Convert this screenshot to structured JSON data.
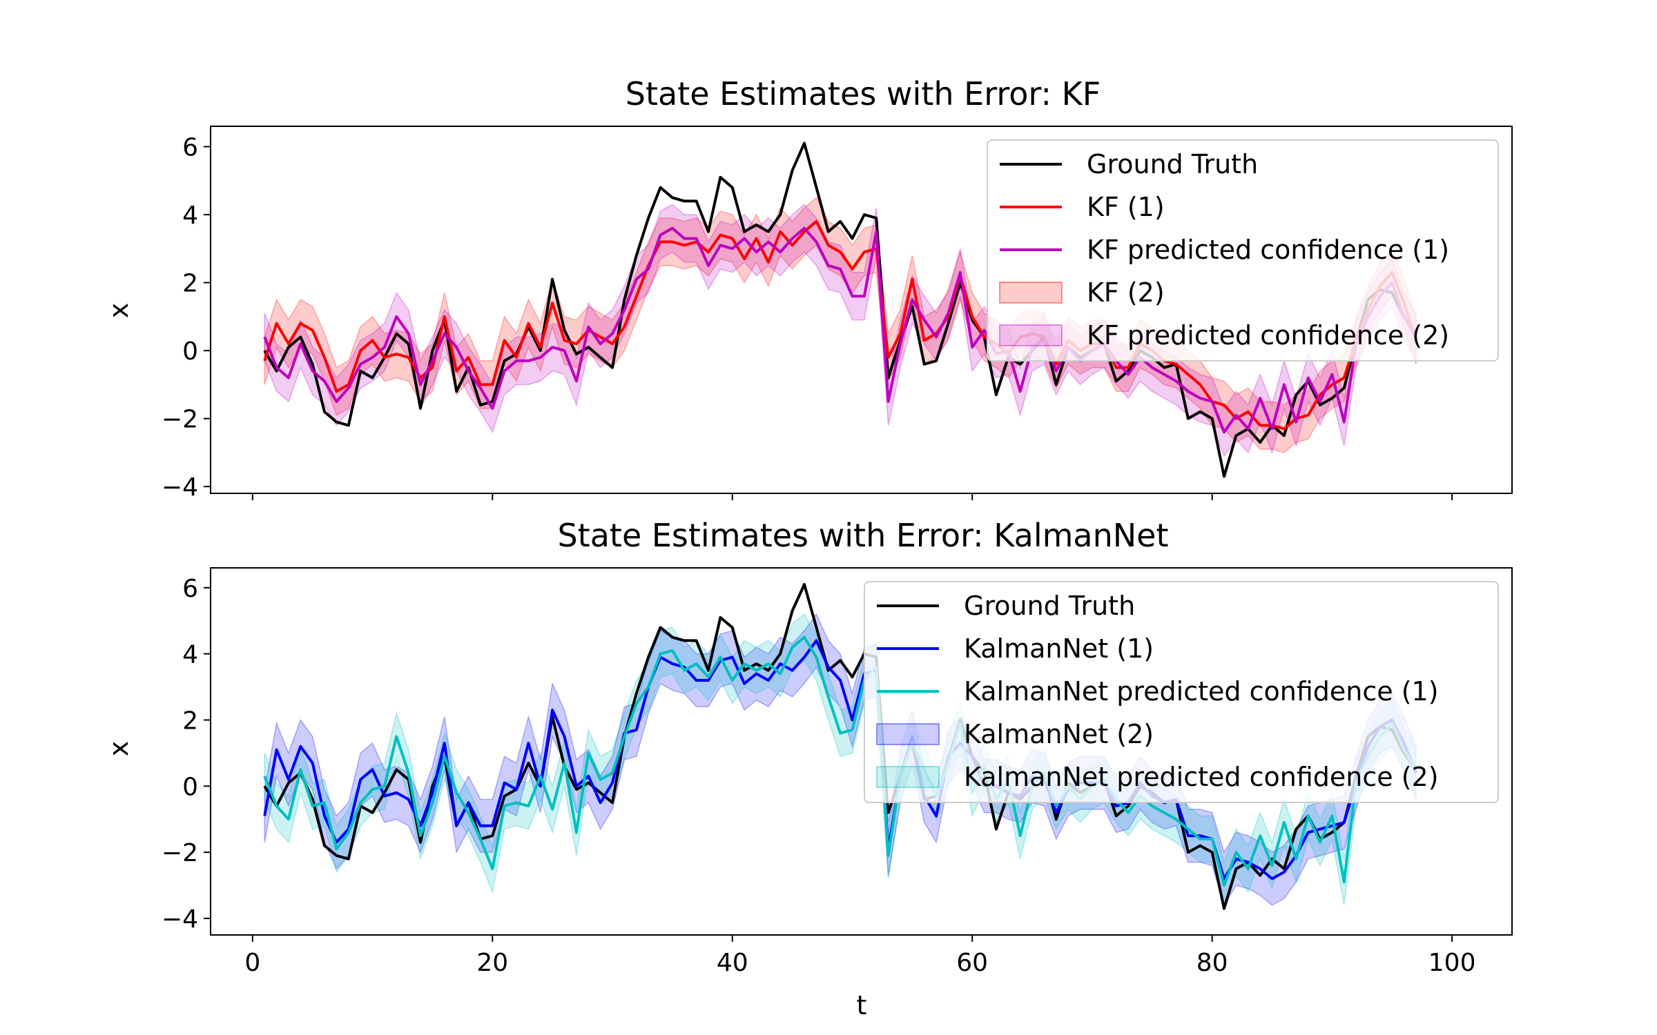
{
  "figure": {
    "xlabel": "t"
  },
  "ground_truth": [
    0.0,
    -0.6,
    0.1,
    0.4,
    -0.4,
    -1.8,
    -2.1,
    -2.2,
    -0.6,
    -0.8,
    -0.2,
    0.5,
    0.2,
    -1.7,
    0.0,
    0.9,
    -1.2,
    -0.5,
    -1.6,
    -1.5,
    -0.3,
    -0.1,
    0.7,
    0.0,
    2.1,
    0.6,
    -0.1,
    0.1,
    -0.2,
    -0.5,
    1.5,
    2.8,
    3.9,
    4.8,
    4.5,
    4.4,
    4.4,
    3.5,
    5.1,
    4.8,
    3.5,
    3.7,
    3.5,
    4.0,
    5.3,
    6.1,
    4.8,
    3.5,
    3.8,
    3.3,
    4.0,
    3.9,
    -0.8,
    0.3,
    1.3,
    -0.4,
    -0.3,
    0.8,
    2.0,
    0.9,
    0.4,
    -1.3,
    -0.2,
    -0.4,
    0.0,
    0.4,
    -1.0,
    0.1,
    -0.2,
    0.0,
    0.2,
    -0.9,
    -0.6,
    0.0,
    -0.2,
    -0.5,
    -0.4,
    -2.0,
    -1.8,
    -2.0,
    -3.7,
    -2.5,
    -2.3,
    -2.7,
    -2.2,
    -2.5,
    -1.3,
    -0.9,
    -1.6,
    -1.4,
    -1.1,
    0.3,
    1.5,
    1.8,
    1.7,
    1.0,
    0.5
  ],
  "chart_data": [
    {
      "type": "line",
      "title": "State Estimates with Error: KF",
      "xlabel": "",
      "ylabel": "x",
      "xlim": [
        -3.5,
        105
      ],
      "ylim": [
        -4.2,
        6.6
      ],
      "x_ticks": [
        0,
        20,
        40,
        60,
        80,
        100
      ],
      "y_ticks": [
        -4,
        -2,
        0,
        2,
        4,
        6
      ],
      "y_tick_labels": [
        "−4",
        "−2",
        "0",
        "2",
        "4",
        "6"
      ],
      "x_tick_labels": [],
      "grid": false,
      "legend_position": "top-right",
      "legend": [
        "Ground Truth",
        "KF (1)",
        "KF predicted confidence (1)",
        "KF (2)",
        "KF predicted confidence (2)"
      ],
      "series": [
        {
          "name": "Ground Truth",
          "color": "#000000",
          "kind": "line",
          "source": "ground_truth"
        },
        {
          "name": "KF (1)",
          "color": "#ff0000",
          "kind": "line",
          "values": [
            -0.3,
            0.8,
            0.2,
            0.8,
            0.6,
            -0.2,
            -1.2,
            -1.0,
            0.0,
            0.3,
            -0.2,
            -0.1,
            -0.2,
            -0.8,
            -0.5,
            1.0,
            -0.6,
            -0.2,
            -1.0,
            -1.0,
            0.3,
            -0.2,
            0.8,
            0.1,
            1.4,
            0.3,
            0.2,
            0.6,
            0.4,
            0.2,
            0.7,
            1.6,
            2.5,
            3.2,
            3.2,
            3.1,
            3.2,
            2.9,
            3.4,
            3.3,
            2.7,
            3.3,
            2.6,
            3.5,
            3.1,
            3.5,
            3.8,
            3.1,
            2.9,
            2.4,
            2.9,
            3.0,
            -0.2,
            0.5,
            2.1,
            0.3,
            0.5,
            1.0,
            2.2,
            1.0,
            0.4,
            0.2,
            -0.1,
            0.4,
            0.5,
            0.4,
            -0.4,
            0.3,
            0.0,
            0.2,
            0.2,
            -0.5,
            -0.5,
            0.2,
            0.0,
            -0.3,
            -0.4,
            -0.7,
            -1.0,
            -1.5,
            -1.6,
            -2.0,
            -1.8,
            -2.2,
            -2.2,
            -2.3,
            -2.0,
            -1.9,
            -1.3,
            -1.0,
            -0.8,
            0.3,
            1.2,
            1.9,
            2.3,
            1.4,
            0.3
          ]
        },
        {
          "name": "KF predicted confidence (1)",
          "color": "#bf00bf",
          "kind": "line",
          "values": [
            0.4,
            -0.5,
            -0.8,
            0.2,
            -0.6,
            -0.9,
            -1.5,
            -1.1,
            -0.4,
            -0.2,
            0.1,
            1.0,
            0.5,
            -1.0,
            -0.3,
            0.5,
            0.1,
            -0.6,
            -1.1,
            -1.7,
            -0.6,
            -0.3,
            -0.3,
            -0.2,
            0.1,
            0.0,
            -0.9,
            0.7,
            0.2,
            0.5,
            1.2,
            2.1,
            2.4,
            3.4,
            3.6,
            3.3,
            3.3,
            2.5,
            3.1,
            3.0,
            3.3,
            2.9,
            3.2,
            2.9,
            3.3,
            3.6,
            3.2,
            2.5,
            2.4,
            1.6,
            1.6,
            3.5,
            -1.5,
            0.2,
            1.5,
            0.9,
            0.4,
            1.1,
            2.3,
            0.1,
            0.6,
            -0.1,
            0.0,
            -1.2,
            0.1,
            0.3,
            -0.6,
            0.1,
            -0.3,
            0.0,
            0.2,
            -0.3,
            -0.7,
            -0.2,
            -0.5,
            -0.7,
            -0.9,
            -1.2,
            -1.4,
            -1.5,
            -2.4,
            -1.9,
            -2.3,
            -1.4,
            -2.3,
            -1.0,
            -2.1,
            -0.8,
            -1.5,
            -0.7,
            -2.1,
            0.2,
            1.0,
            1.6,
            2.0,
            1.0,
            0.4
          ],
          "band": 0.7
        },
        {
          "name": "KF (2)",
          "color": "#ff0000",
          "kind": "band",
          "of": "KF (1)",
          "half_width": 0.7
        },
        {
          "name": "KF predicted confidence (2)",
          "color": "#bf00bf",
          "kind": "band",
          "of": "KF predicted confidence (1)",
          "half_width": 0.7
        }
      ]
    },
    {
      "type": "line",
      "title": "State Estimates with Error: KalmanNet",
      "xlabel": "t",
      "ylabel": "x",
      "xlim": [
        -3.5,
        105
      ],
      "ylim": [
        -4.5,
        6.6
      ],
      "x_ticks": [
        0,
        20,
        40,
        60,
        80,
        100
      ],
      "x_tick_labels": [
        "0",
        "20",
        "40",
        "60",
        "80",
        "100"
      ],
      "y_ticks": [
        -4,
        -2,
        0,
        2,
        4,
        6
      ],
      "y_tick_labels": [
        "−4",
        "−2",
        "0",
        "2",
        "4",
        "6"
      ],
      "grid": false,
      "legend_position": "top-right",
      "legend": [
        "Ground Truth",
        "KalmanNet (1)",
        "KalmanNet predicted confidence (1)",
        "KalmanNet (2)",
        "KalmanNet predicted confidence (2)"
      ],
      "series": [
        {
          "name": "Ground Truth",
          "color": "#000000",
          "kind": "line",
          "source": "ground_truth"
        },
        {
          "name": "KalmanNet (1)",
          "color": "#0000ff",
          "kind": "line",
          "values": [
            -0.9,
            1.1,
            0.2,
            1.2,
            0.7,
            -0.9,
            -1.7,
            -1.3,
            0.2,
            0.5,
            -0.3,
            -0.2,
            -0.4,
            -1.2,
            -0.2,
            1.3,
            -1.2,
            -0.5,
            -1.2,
            -1.2,
            0.1,
            -0.1,
            1.3,
            0.0,
            2.3,
            1.5,
            0.0,
            0.3,
            -0.5,
            0.1,
            1.6,
            1.7,
            3.0,
            3.9,
            3.7,
            3.6,
            3.2,
            3.2,
            3.8,
            3.9,
            3.1,
            3.4,
            3.2,
            3.7,
            3.5,
            3.9,
            4.4,
            3.6,
            3.2,
            2.0,
            3.4,
            3.5,
            -1.9,
            0.3,
            1.5,
            -0.3,
            -0.9,
            0.9,
            1.3,
            0.9,
            0.0,
            0.0,
            -0.2,
            -0.3,
            0.3,
            0.2,
            -0.8,
            -0.1,
            0.1,
            0.1,
            0.1,
            -0.6,
            -0.5,
            0.1,
            -0.3,
            -0.5,
            -0.4,
            -1.5,
            -1.5,
            -1.6,
            -2.8,
            -2.2,
            -2.3,
            -2.5,
            -2.8,
            -2.6,
            -2.1,
            -1.4,
            -1.3,
            -1.2,
            -1.1,
            0.1,
            1.2,
            1.8,
            2.0,
            1.3,
            0.4
          ],
          "band": 0.8
        },
        {
          "name": "KalmanNet predicted confidence (1)",
          "color": "#00bfbf",
          "kind": "line",
          "values": [
            0.3,
            -0.6,
            -1.0,
            0.5,
            -0.6,
            -0.5,
            -1.9,
            -1.4,
            -0.5,
            -0.1,
            0.0,
            1.5,
            0.4,
            -1.5,
            -0.5,
            0.9,
            -0.2,
            -0.8,
            -1.6,
            -2.5,
            -0.6,
            -0.5,
            -0.6,
            0.3,
            -0.7,
            0.7,
            -1.4,
            1.0,
            0.2,
            0.4,
            1.5,
            2.5,
            3.0,
            4.0,
            4.1,
            3.5,
            3.7,
            3.3,
            3.9,
            3.2,
            3.7,
            3.5,
            3.7,
            3.4,
            4.2,
            4.5,
            3.9,
            2.7,
            1.6,
            1.7,
            3.2,
            3.6,
            -2.1,
            0.3,
            1.3,
            0.5,
            -0.3,
            0.7,
            1.9,
            -0.2,
            0.6,
            -0.4,
            0.2,
            -1.5,
            0.0,
            0.4,
            -0.6,
            0.0,
            -0.4,
            0.0,
            0.2,
            -0.4,
            -0.8,
            -0.3,
            -0.6,
            -0.8,
            -1.0,
            -1.3,
            -1.6,
            -1.6,
            -3.0,
            -2.0,
            -2.5,
            -1.5,
            -2.4,
            -1.1,
            -2.2,
            -0.9,
            -1.7,
            -0.9,
            -2.9,
            0.1,
            0.9,
            1.5,
            1.9,
            1.1,
            0.5
          ],
          "band": 0.7
        },
        {
          "name": "KalmanNet (2)",
          "color": "#0000ff",
          "kind": "band",
          "of": "KalmanNet (1)",
          "half_width": 0.8
        },
        {
          "name": "KalmanNet predicted confidence (2)",
          "color": "#00bfbf",
          "kind": "band",
          "of": "KalmanNet predicted confidence (1)",
          "half_width": 0.7
        }
      ]
    }
  ]
}
